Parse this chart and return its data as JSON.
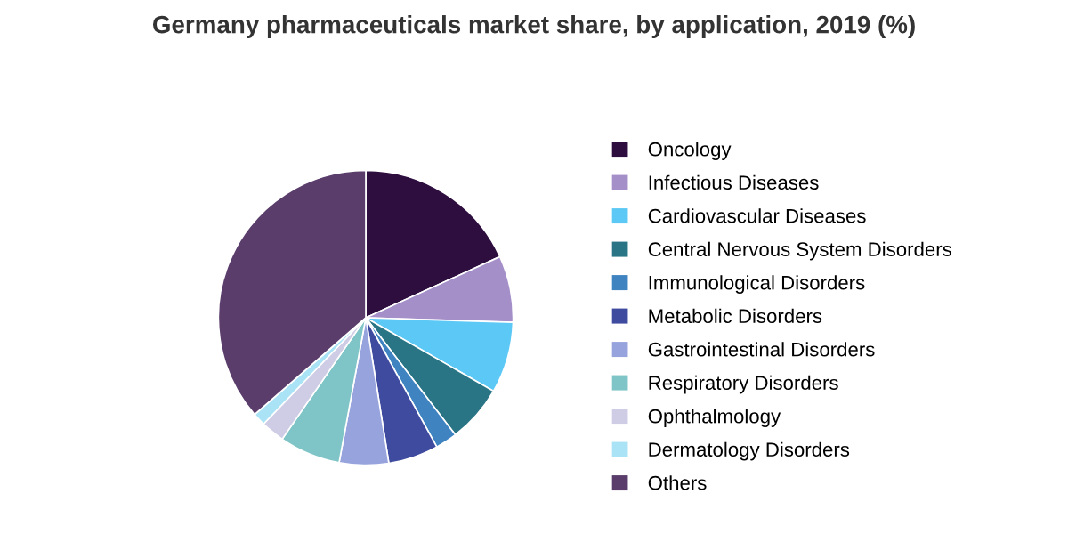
{
  "chart_data": {
    "type": "pie",
    "title": "Germany pharmaceuticals market share, by application, 2019 (%)",
    "categories": [
      "Oncology",
      "Infectious Diseases",
      "Cardiovascular Diseases",
      "Central Nervous System Disorders",
      "Immunological Disorders",
      "Metabolic Disorders",
      "Gastrointestinal Disorders",
      "Respiratory Disorders",
      "Ophthalmology",
      "Dermatology Disorders",
      "Others"
    ],
    "values": [
      18.2,
      7.3,
      7.8,
      6.3,
      2.4,
      5.5,
      5.4,
      6.7,
      2.6,
      1.4,
      36.4
    ],
    "colors": [
      "#2e0d3f",
      "#a48fc8",
      "#5bc8f5",
      "#2a7585",
      "#3f84c0",
      "#3f4b9f",
      "#96a3dc",
      "#7fc4c6",
      "#cfcde6",
      "#a9e3f5",
      "#5a3d6b"
    ],
    "legend": "right"
  }
}
